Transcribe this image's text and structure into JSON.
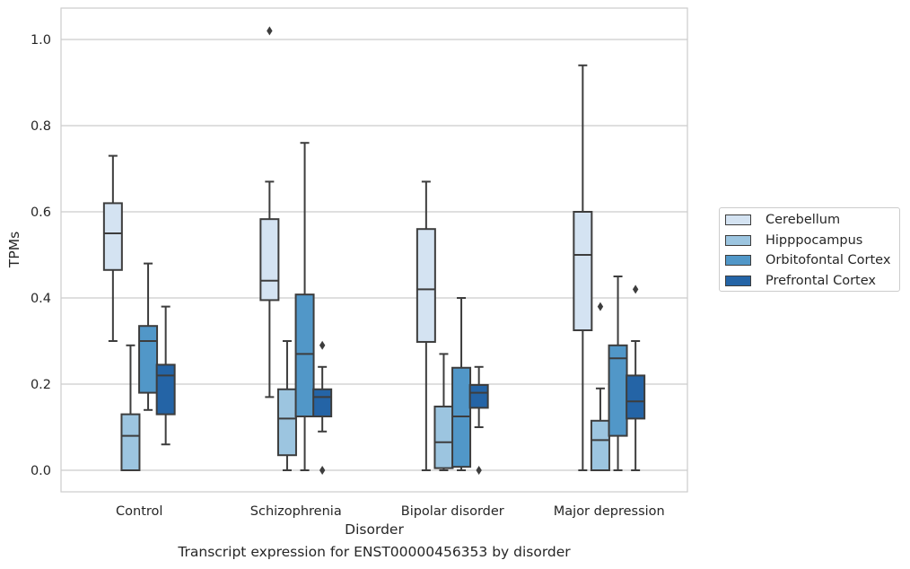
{
  "chart_data": {
    "type": "box",
    "categories": [
      "Control",
      "Schizophrenia",
      "Bipolar disorder",
      "Major depression"
    ],
    "xlabel": "Disorder",
    "ylabel": "TPMs",
    "ylim": [
      -0.05,
      1.07
    ],
    "yticks": [
      "0.0",
      "0.2",
      "0.4",
      "0.6",
      "0.8",
      "1.0"
    ],
    "grid": true,
    "legend_position": "right",
    "series": [
      {
        "name": "Cerebellum",
        "color": "#d4e3f2",
        "boxes": [
          {
            "whisker_low": 0.3,
            "q1": 0.465,
            "median": 0.55,
            "q3": 0.62,
            "whisker_high": 0.73,
            "outliers": []
          },
          {
            "whisker_low": 0.17,
            "q1": 0.395,
            "median": 0.44,
            "q3": 0.583,
            "whisker_high": 0.67,
            "outliers": [
              1.02
            ]
          },
          {
            "whisker_low": 0.0,
            "q1": 0.298,
            "median": 0.42,
            "q3": 0.56,
            "whisker_high": 0.67,
            "outliers": []
          },
          {
            "whisker_low": 0.0,
            "q1": 0.325,
            "median": 0.5,
            "q3": 0.6,
            "whisker_high": 0.94,
            "outliers": []
          }
        ]
      },
      {
        "name": "Hipppocampus",
        "color": "#9cc5e0",
        "boxes": [
          {
            "whisker_low": 0.0,
            "q1": 0.0,
            "median": 0.08,
            "q3": 0.13,
            "whisker_high": 0.29,
            "outliers": []
          },
          {
            "whisker_low": 0.0,
            "q1": 0.035,
            "median": 0.12,
            "q3": 0.188,
            "whisker_high": 0.3,
            "outliers": []
          },
          {
            "whisker_low": 0.0,
            "q1": 0.005,
            "median": 0.065,
            "q3": 0.148,
            "whisker_high": 0.27,
            "outliers": []
          },
          {
            "whisker_low": 0.0,
            "q1": 0.0,
            "median": 0.07,
            "q3": 0.115,
            "whisker_high": 0.19,
            "outliers": [
              0.38
            ]
          }
        ]
      },
      {
        "name": "Orbitofontal Cortex",
        "color": "#5197c8",
        "boxes": [
          {
            "whisker_low": 0.14,
            "q1": 0.18,
            "median": 0.3,
            "q3": 0.335,
            "whisker_high": 0.48,
            "outliers": []
          },
          {
            "whisker_low": 0.0,
            "q1": 0.125,
            "median": 0.27,
            "q3": 0.408,
            "whisker_high": 0.76,
            "outliers": []
          },
          {
            "whisker_low": 0.0,
            "q1": 0.008,
            "median": 0.125,
            "q3": 0.238,
            "whisker_high": 0.4,
            "outliers": []
          },
          {
            "whisker_low": 0.0,
            "q1": 0.08,
            "median": 0.26,
            "q3": 0.29,
            "whisker_high": 0.45,
            "outliers": []
          }
        ]
      },
      {
        "name": "Prefrontal Cortex",
        "color": "#2464a6",
        "boxes": [
          {
            "whisker_low": 0.06,
            "q1": 0.13,
            "median": 0.22,
            "q3": 0.245,
            "whisker_high": 0.38,
            "outliers": []
          },
          {
            "whisker_low": 0.09,
            "q1": 0.125,
            "median": 0.17,
            "q3": 0.188,
            "whisker_high": 0.24,
            "outliers": [
              0.29,
              0.0
            ]
          },
          {
            "whisker_low": 0.1,
            "q1": 0.145,
            "median": 0.18,
            "q3": 0.198,
            "whisker_high": 0.24,
            "outliers": [
              0.0
            ]
          },
          {
            "whisker_low": 0.0,
            "q1": 0.12,
            "median": 0.16,
            "q3": 0.22,
            "whisker_high": 0.3,
            "outliers": [
              0.42
            ]
          }
        ]
      }
    ],
    "caption": "Transcript expression for ENST00000456353 by disorder"
  }
}
